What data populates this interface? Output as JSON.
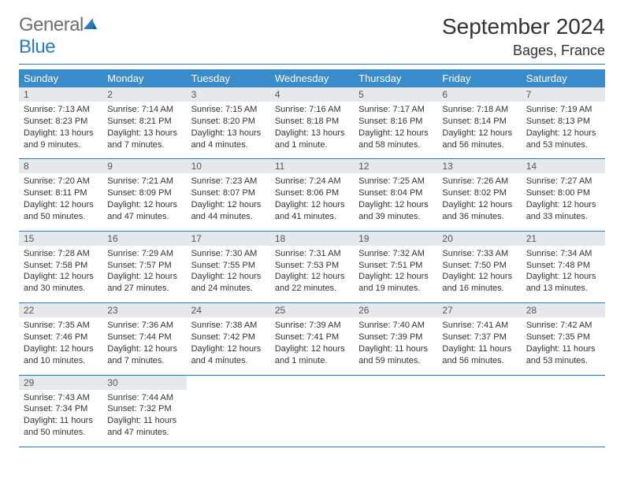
{
  "brand": {
    "word1": "General",
    "word2": "Blue"
  },
  "title": "September 2024",
  "location": "Bages, France",
  "colors": {
    "header_bg": "#3a8bc9",
    "rule": "#2a7bbf",
    "daynum_bg": "#e6e9ec",
    "text": "#333333",
    "logo_gray": "#6b6f73",
    "logo_blue": "#2a7bbf"
  },
  "weekdays": [
    "Sunday",
    "Monday",
    "Tuesday",
    "Wednesday",
    "Thursday",
    "Friday",
    "Saturday"
  ],
  "weeks": [
    [
      {
        "n": "1",
        "sr": "7:13 AM",
        "ss": "8:23 PM",
        "dl": "13 hours and 9 minutes."
      },
      {
        "n": "2",
        "sr": "7:14 AM",
        "ss": "8:21 PM",
        "dl": "13 hours and 7 minutes."
      },
      {
        "n": "3",
        "sr": "7:15 AM",
        "ss": "8:20 PM",
        "dl": "13 hours and 4 minutes."
      },
      {
        "n": "4",
        "sr": "7:16 AM",
        "ss": "8:18 PM",
        "dl": "13 hours and 1 minute."
      },
      {
        "n": "5",
        "sr": "7:17 AM",
        "ss": "8:16 PM",
        "dl": "12 hours and 58 minutes."
      },
      {
        "n": "6",
        "sr": "7:18 AM",
        "ss": "8:14 PM",
        "dl": "12 hours and 56 minutes."
      },
      {
        "n": "7",
        "sr": "7:19 AM",
        "ss": "8:13 PM",
        "dl": "12 hours and 53 minutes."
      }
    ],
    [
      {
        "n": "8",
        "sr": "7:20 AM",
        "ss": "8:11 PM",
        "dl": "12 hours and 50 minutes."
      },
      {
        "n": "9",
        "sr": "7:21 AM",
        "ss": "8:09 PM",
        "dl": "12 hours and 47 minutes."
      },
      {
        "n": "10",
        "sr": "7:23 AM",
        "ss": "8:07 PM",
        "dl": "12 hours and 44 minutes."
      },
      {
        "n": "11",
        "sr": "7:24 AM",
        "ss": "8:06 PM",
        "dl": "12 hours and 41 minutes."
      },
      {
        "n": "12",
        "sr": "7:25 AM",
        "ss": "8:04 PM",
        "dl": "12 hours and 39 minutes."
      },
      {
        "n": "13",
        "sr": "7:26 AM",
        "ss": "8:02 PM",
        "dl": "12 hours and 36 minutes."
      },
      {
        "n": "14",
        "sr": "7:27 AM",
        "ss": "8:00 PM",
        "dl": "12 hours and 33 minutes."
      }
    ],
    [
      {
        "n": "15",
        "sr": "7:28 AM",
        "ss": "7:58 PM",
        "dl": "12 hours and 30 minutes."
      },
      {
        "n": "16",
        "sr": "7:29 AM",
        "ss": "7:57 PM",
        "dl": "12 hours and 27 minutes."
      },
      {
        "n": "17",
        "sr": "7:30 AM",
        "ss": "7:55 PM",
        "dl": "12 hours and 24 minutes."
      },
      {
        "n": "18",
        "sr": "7:31 AM",
        "ss": "7:53 PM",
        "dl": "12 hours and 22 minutes."
      },
      {
        "n": "19",
        "sr": "7:32 AM",
        "ss": "7:51 PM",
        "dl": "12 hours and 19 minutes."
      },
      {
        "n": "20",
        "sr": "7:33 AM",
        "ss": "7:50 PM",
        "dl": "12 hours and 16 minutes."
      },
      {
        "n": "21",
        "sr": "7:34 AM",
        "ss": "7:48 PM",
        "dl": "12 hours and 13 minutes."
      }
    ],
    [
      {
        "n": "22",
        "sr": "7:35 AM",
        "ss": "7:46 PM",
        "dl": "12 hours and 10 minutes."
      },
      {
        "n": "23",
        "sr": "7:36 AM",
        "ss": "7:44 PM",
        "dl": "12 hours and 7 minutes."
      },
      {
        "n": "24",
        "sr": "7:38 AM",
        "ss": "7:42 PM",
        "dl": "12 hours and 4 minutes."
      },
      {
        "n": "25",
        "sr": "7:39 AM",
        "ss": "7:41 PM",
        "dl": "12 hours and 1 minute."
      },
      {
        "n": "26",
        "sr": "7:40 AM",
        "ss": "7:39 PM",
        "dl": "11 hours and 59 minutes."
      },
      {
        "n": "27",
        "sr": "7:41 AM",
        "ss": "7:37 PM",
        "dl": "11 hours and 56 minutes."
      },
      {
        "n": "28",
        "sr": "7:42 AM",
        "ss": "7:35 PM",
        "dl": "11 hours and 53 minutes."
      }
    ],
    [
      {
        "n": "29",
        "sr": "7:43 AM",
        "ss": "7:34 PM",
        "dl": "11 hours and 50 minutes."
      },
      {
        "n": "30",
        "sr": "7:44 AM",
        "ss": "7:32 PM",
        "dl": "11 hours and 47 minutes."
      },
      null,
      null,
      null,
      null,
      null
    ]
  ],
  "labels": {
    "sunrise": "Sunrise:",
    "sunset": "Sunset:",
    "daylight": "Daylight:"
  }
}
